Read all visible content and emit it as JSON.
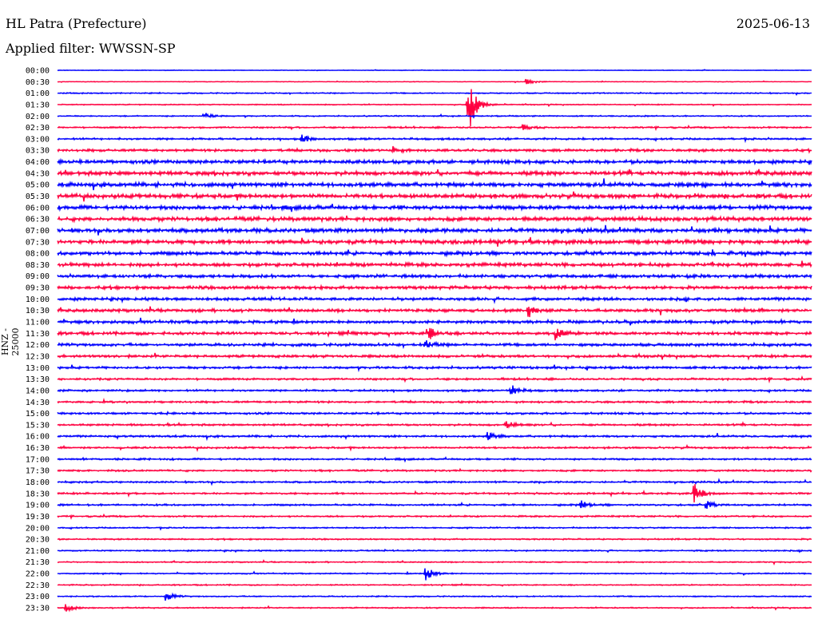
{
  "header": {
    "station": "HL Patra (Prefecture)",
    "date": "2025-06-13",
    "filter": "Applied filter: WWSSN-SP"
  },
  "chart_data": {
    "type": "line",
    "title": "HL Patra (Prefecture)",
    "ylabel": "HNZ - 25000",
    "xlabel": "",
    "row_minutes": 30,
    "colors": [
      "#0000ff",
      "#ff0040"
    ],
    "row_labels": [
      "00:00",
      "00:30",
      "01:00",
      "01:30",
      "02:00",
      "02:30",
      "03:00",
      "03:30",
      "04:00",
      "04:30",
      "05:00",
      "05:30",
      "06:00",
      "06:30",
      "07:00",
      "07:30",
      "08:00",
      "08:30",
      "09:00",
      "09:30",
      "10:00",
      "10:30",
      "11:00",
      "11:30",
      "12:00",
      "12:30",
      "13:00",
      "13:30",
      "14:00",
      "14:30",
      "15:00",
      "15:30",
      "16:00",
      "16:30",
      "17:00",
      "17:30",
      "18:00",
      "18:30",
      "19:00",
      "19:30",
      "20:00",
      "20:30",
      "21:00",
      "21:30",
      "22:00",
      "22:30",
      "23:00",
      "23:30"
    ],
    "noise_level": [
      0.3,
      0.3,
      0.6,
      0.5,
      0.6,
      0.8,
      1.0,
      1.3,
      1.8,
      2.0,
      2.0,
      2.0,
      2.0,
      2.0,
      2.0,
      2.0,
      1.8,
      1.8,
      1.6,
      1.6,
      1.5,
      1.5,
      1.5,
      1.5,
      1.4,
      1.3,
      1.2,
      1.0,
      1.0,
      1.0,
      1.0,
      1.0,
      1.0,
      0.9,
      0.9,
      0.9,
      0.9,
      0.9,
      0.9,
      0.8,
      0.7,
      0.7,
      0.7,
      0.6,
      0.6,
      0.6,
      0.6,
      0.6
    ],
    "events": [
      {
        "row": 1,
        "minute": 18.6,
        "amp": 5
      },
      {
        "row": 3,
        "minute": 16.3,
        "amp": 45
      },
      {
        "row": 4,
        "minute": 5.8,
        "amp": 6
      },
      {
        "row": 5,
        "minute": 18.5,
        "amp": 4
      },
      {
        "row": 6,
        "minute": 9.7,
        "amp": 6
      },
      {
        "row": 7,
        "minute": 13.3,
        "amp": 6
      },
      {
        "row": 21,
        "minute": 18.7,
        "amp": 9
      },
      {
        "row": 23,
        "minute": 14.7,
        "amp": 12
      },
      {
        "row": 23,
        "minute": 19.8,
        "amp": 8
      },
      {
        "row": 24,
        "minute": 14.6,
        "amp": 7
      },
      {
        "row": 28,
        "minute": 18.0,
        "amp": 9
      },
      {
        "row": 31,
        "minute": 17.8,
        "amp": 7
      },
      {
        "row": 32,
        "minute": 17.1,
        "amp": 6
      },
      {
        "row": 37,
        "minute": 25.3,
        "amp": 14
      },
      {
        "row": 38,
        "minute": 20.8,
        "amp": 6
      },
      {
        "row": 38,
        "minute": 25.8,
        "amp": 5
      },
      {
        "row": 44,
        "minute": 14.6,
        "amp": 12
      },
      {
        "row": 46,
        "minute": 4.3,
        "amp": 6
      },
      {
        "row": 47,
        "minute": 0.3,
        "amp": 6
      }
    ]
  }
}
